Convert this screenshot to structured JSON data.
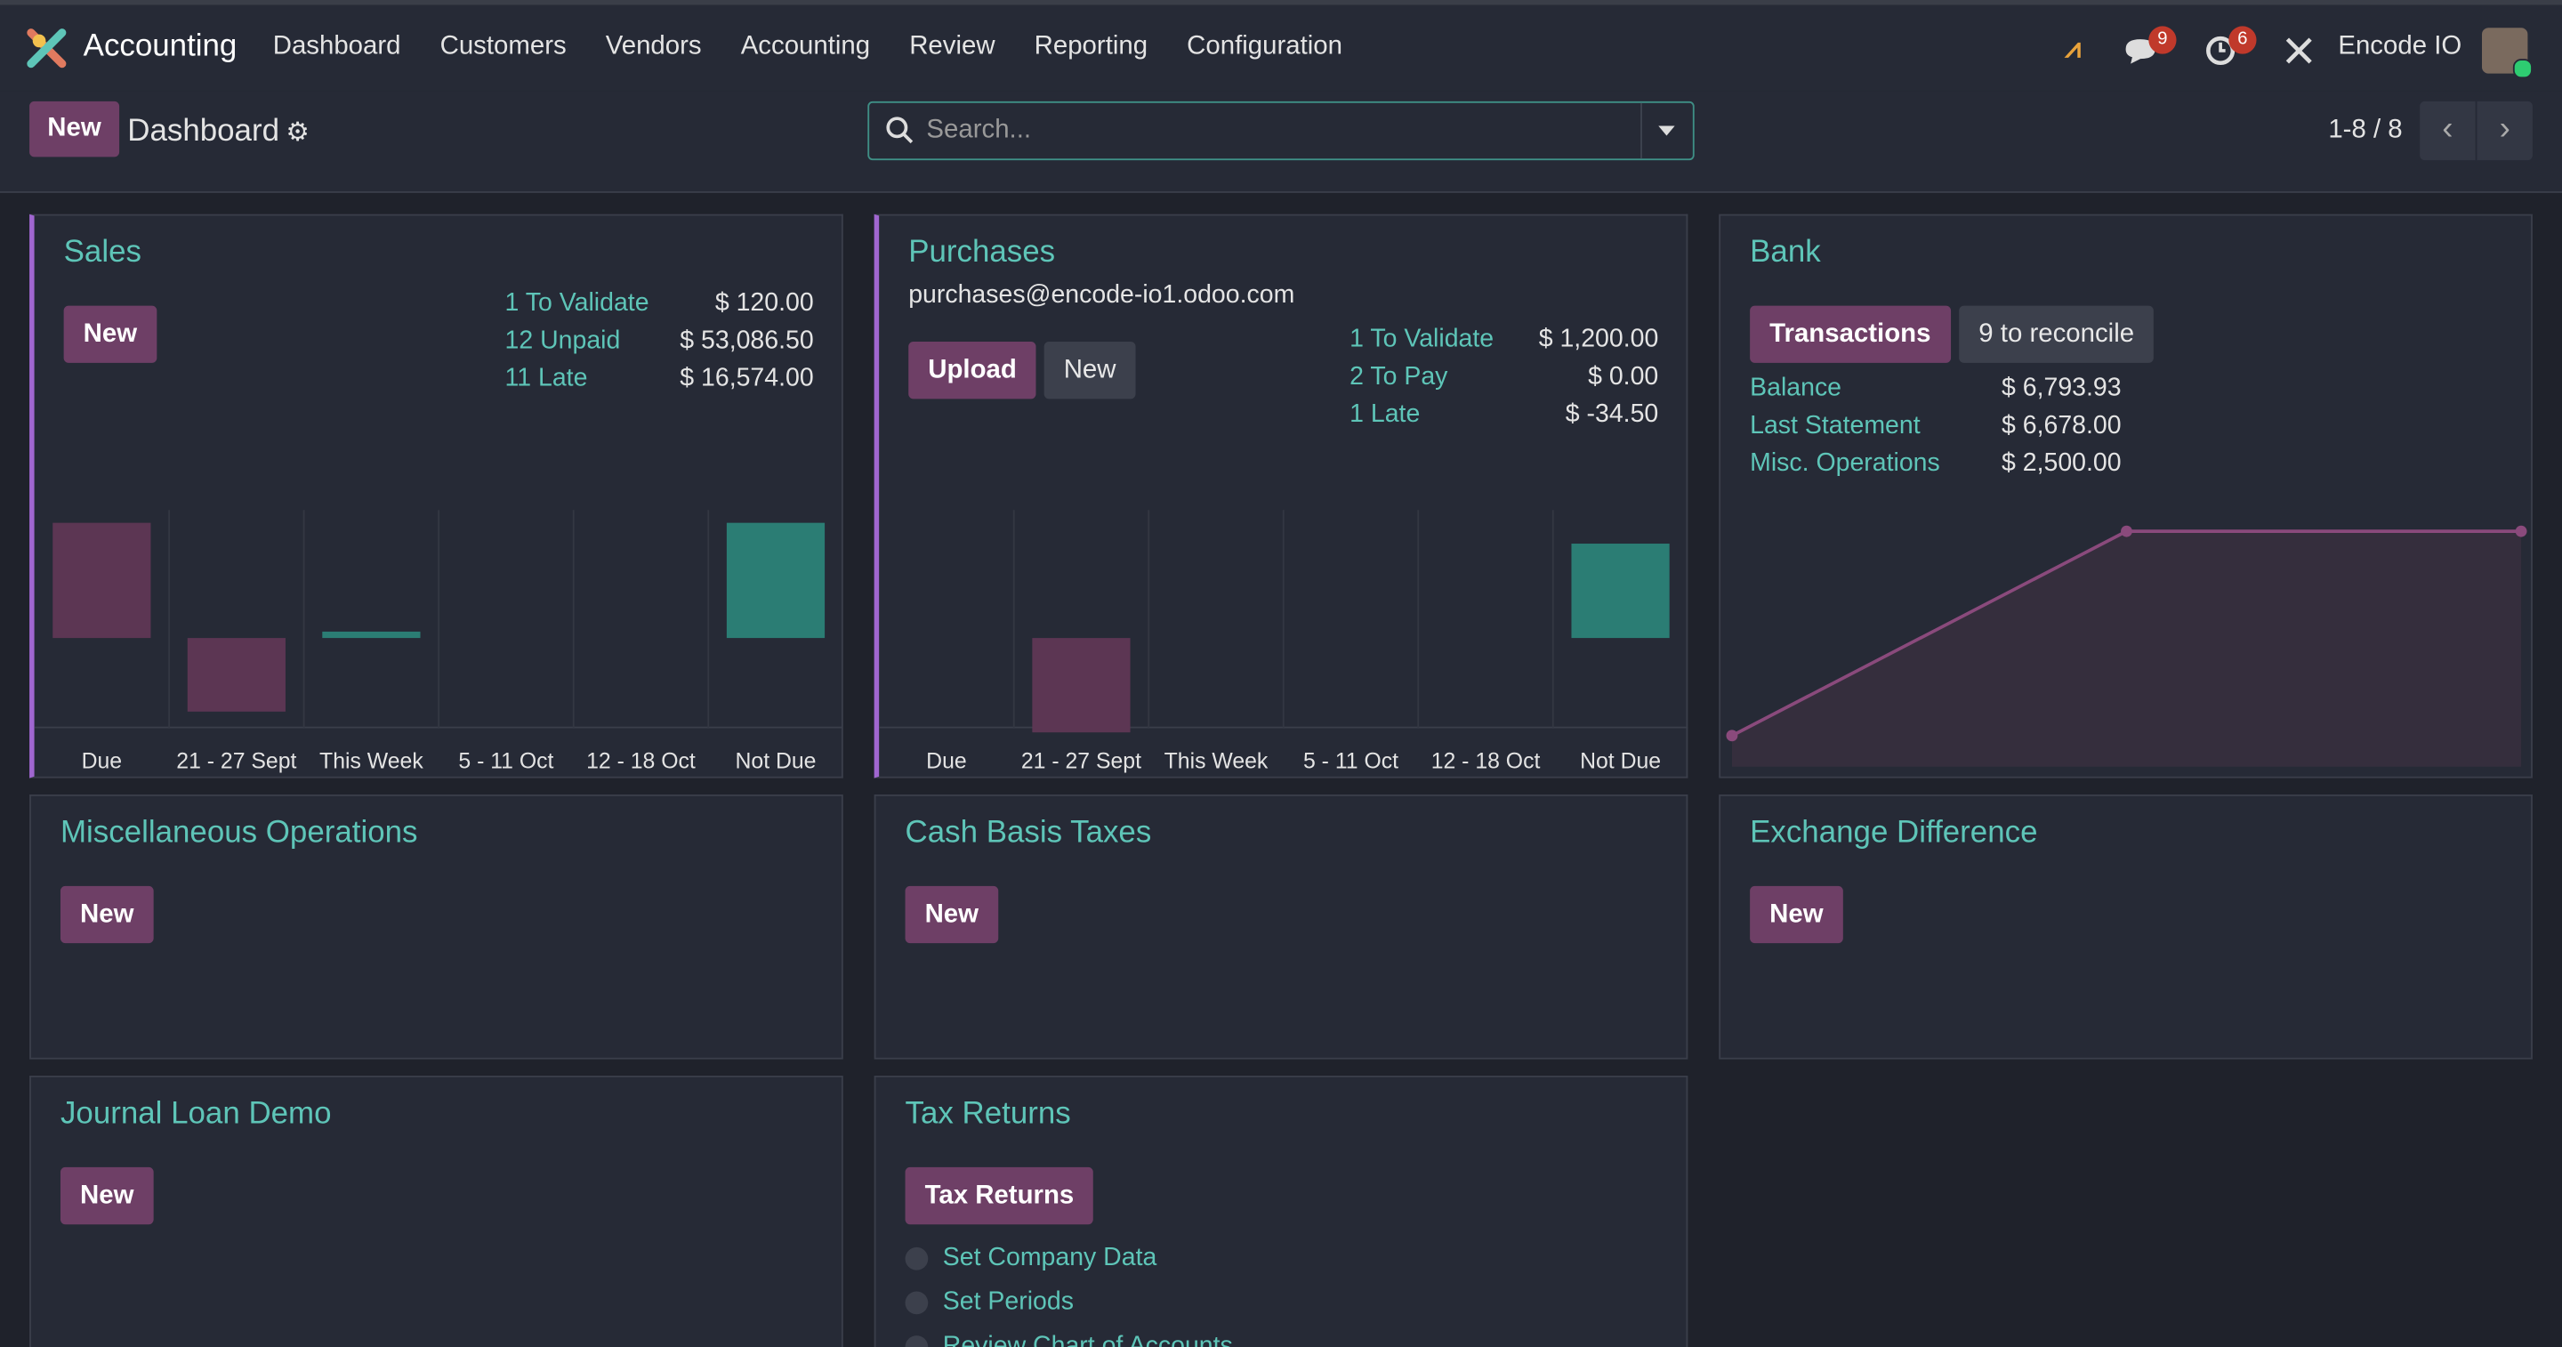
{
  "nav": {
    "app": "Accounting",
    "menu": [
      "Dashboard",
      "Customers",
      "Vendors",
      "Accounting",
      "Review",
      "Reporting",
      "Configuration"
    ],
    "messages_badge": "9",
    "activity_badge": "6",
    "company": "Encode IO"
  },
  "control_panel": {
    "new_button": "New",
    "breadcrumb": "Dashboard",
    "search_placeholder": "Search...",
    "pager": "1-8 / 8"
  },
  "cards": [
    {
      "title": "Sales",
      "buttons": [
        "New"
      ],
      "stats": [
        {
          "label": "1 To Validate",
          "amount": "$ 120.00"
        },
        {
          "label": "12 Unpaid",
          "amount": "$ 53,086.50"
        },
        {
          "label": "11 Late",
          "amount": "$ 16,574.00"
        }
      ],
      "chart_data": {
        "type": "bar",
        "categories": [
          "Due",
          "21 - 27 Sept",
          "This Week",
          "5 - 11 Oct",
          "12 - 18 Oct",
          "Not Due"
        ],
        "values": [
          72,
          -46,
          4,
          0,
          0,
          72
        ],
        "colors": [
          "#5c3653",
          "#5c3653",
          "#2b7d74",
          "#2b7d74",
          "#2b7d74",
          "#2b7d74"
        ],
        "ylim": [
          -60,
          80
        ]
      }
    },
    {
      "title": "Purchases",
      "email": "purchases@encode-io1.odoo.com",
      "buttons": [
        "Upload",
        "New"
      ],
      "stats": [
        {
          "label": "1 To Validate",
          "amount": "$ 1,200.00"
        },
        {
          "label": "2 To Pay",
          "amount": "$ 0.00"
        },
        {
          "label": "1 Late",
          "amount": "$ -34.50"
        }
      ],
      "chart_data": {
        "type": "bar",
        "categories": [
          "Due",
          "21 - 27 Sept",
          "This Week",
          "5 - 11 Oct",
          "12 - 18 Oct",
          "Not Due"
        ],
        "values": [
          0,
          -59,
          0,
          0,
          0,
          59
        ],
        "colors": [
          "#5c3653",
          "#5c3653",
          "#2b7d74",
          "#2b7d74",
          "#2b7d74",
          "#2b7d74"
        ],
        "ylim": [
          -60,
          80
        ]
      }
    },
    {
      "title": "Bank",
      "buttons": [
        "Transactions",
        "9 to reconcile"
      ],
      "stats": [
        {
          "label": "Balance",
          "amount": "$ 6,793.93"
        },
        {
          "label": "Last Statement",
          "amount": "$ 6,678.00"
        },
        {
          "label": "Misc. Operations",
          "amount": "$ 2,500.00"
        }
      ],
      "chart_data": {
        "type": "line",
        "values": [
          0,
          6793.93,
          6793.93
        ],
        "color": "#8a4a7c",
        "ylim": [
          0,
          7500
        ]
      }
    },
    {
      "title": "Miscellaneous Operations",
      "buttons": [
        "New"
      ]
    },
    {
      "title": "Cash Basis Taxes",
      "buttons": [
        "New"
      ]
    },
    {
      "title": "Exchange Difference",
      "buttons": [
        "New"
      ]
    },
    {
      "title": "Journal Loan Demo",
      "buttons": [
        "New"
      ]
    },
    {
      "title": "Tax Returns",
      "buttons": [
        "Tax Returns"
      ],
      "checklist": [
        "Set Company Data",
        "Set Periods",
        "Review Chart of Accounts"
      ]
    }
  ]
}
